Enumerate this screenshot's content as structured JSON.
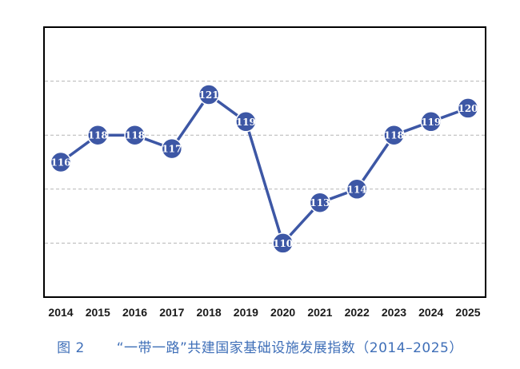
{
  "chart_data": {
    "type": "line",
    "title": "",
    "xlabel": "",
    "ylabel": "",
    "x": [
      "2014",
      "2015",
      "2016",
      "2017",
      "2018",
      "2019",
      "2020",
      "2021",
      "2022",
      "2023",
      "2024",
      "2025"
    ],
    "series": [
      {
        "values": [
          116,
          118,
          118,
          117,
          121,
          119,
          110,
          113,
          114,
          118,
          119,
          120
        ]
      }
    ],
    "ylim": [
      106,
      126
    ],
    "grid": "horizontal-dashed",
    "legend": "none",
    "colors": {
      "line": "#3d57a5",
      "marker": "#3d57a5",
      "label": "#ffffff",
      "grid": "#b5b5b5",
      "frame": "#000000"
    }
  },
  "caption": {
    "figure_label": "图 2",
    "text": "“一带一路”共建国家基础设施发展指数（2014–2025）"
  }
}
